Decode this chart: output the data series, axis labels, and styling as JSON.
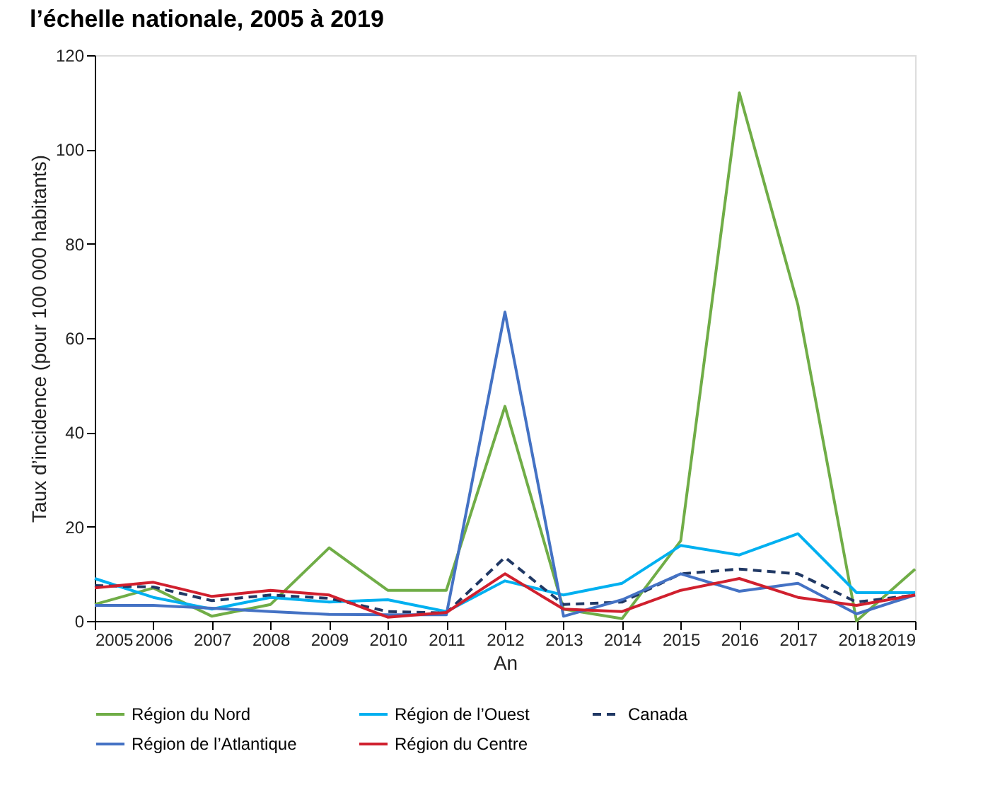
{
  "chart_data": {
    "type": "line",
    "title": "l’échelle nationale, 2005 à 2019",
    "xlabel": "An",
    "ylabel": "Taux d’incidence (pour 100 000 habitants)",
    "x": [
      2005,
      2006,
      2007,
      2008,
      2009,
      2010,
      2011,
      2012,
      2013,
      2014,
      2015,
      2016,
      2017,
      2018,
      2019
    ],
    "series": [
      {
        "name": "Région du Nord",
        "color": "#70ad47",
        "line_style": "solid",
        "values": [
          3.5,
          7,
          1,
          3.5,
          15.5,
          6.5,
          6.5,
          45.5,
          2.5,
          0.5,
          17,
          112,
          67,
          0,
          11
        ]
      },
      {
        "name": "Région de l’Ouest",
        "color": "#00b0f0",
        "line_style": "solid",
        "values": [
          9,
          5,
          2.5,
          5,
          4,
          4.5,
          2,
          8.5,
          5.5,
          8,
          16,
          14,
          18.5,
          6,
          6
        ]
      },
      {
        "name": "Canada",
        "color": "#203864",
        "line_style": "dashed",
        "values": [
          7.5,
          7.2,
          4.3,
          5.5,
          4.8,
          2,
          1.7,
          13.5,
          3.5,
          4,
          10,
          11,
          10,
          4,
          5.5
        ]
      },
      {
        "name": "Région de l’Atlantique",
        "color": "#4472c4",
        "line_style": "solid",
        "values": [
          3.3,
          3.3,
          2.7,
          2,
          1.4,
          1.3,
          1.3,
          65.5,
          1,
          4.5,
          10,
          6.3,
          8,
          1.5,
          5.5
        ]
      },
      {
        "name": "Région du Centre",
        "color": "#d0202e",
        "line_style": "solid",
        "values": [
          7,
          8.2,
          5.2,
          6.5,
          5.5,
          0.8,
          1.8,
          10,
          2.5,
          2,
          6.5,
          9,
          5,
          3.3,
          5.5
        ]
      }
    ],
    "xlim": [
      2005,
      2019
    ],
    "xticks": [
      2005,
      2006,
      2007,
      2008,
      2009,
      2010,
      2011,
      2012,
      2013,
      2014,
      2015,
      2016,
      2017,
      2018,
      2019
    ],
    "ylim": [
      0,
      120
    ],
    "yticks": [
      0,
      20,
      40,
      60,
      80,
      100,
      120
    ],
    "grid": false,
    "legend": "bottom",
    "marker": "none"
  }
}
